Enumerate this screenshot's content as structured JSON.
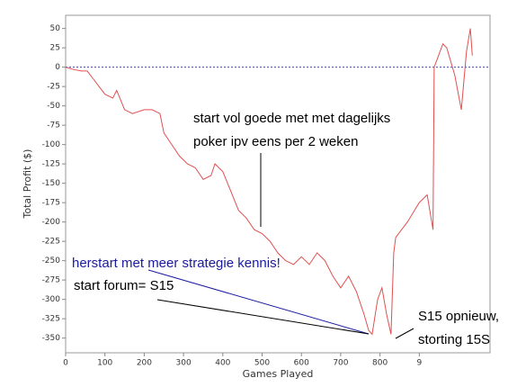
{
  "chart_data": {
    "type": "line",
    "xlabel": "Games Played",
    "ylabel": "Total Profit ($)",
    "x": [
      0,
      20,
      40,
      55,
      70,
      85,
      100,
      120,
      130,
      150,
      170,
      200,
      220,
      240,
      250,
      270,
      290,
      310,
      330,
      350,
      370,
      380,
      400,
      420,
      440,
      460,
      480,
      500,
      520,
      540,
      560,
      580,
      600,
      620,
      640,
      660,
      680,
      700,
      720,
      740,
      760,
      771,
      780,
      794,
      805,
      817,
      828,
      835,
      840,
      870,
      900,
      920,
      935,
      938,
      960,
      970,
      990,
      1007,
      1020,
      1030,
      1035
    ],
    "values": [
      0,
      -3,
      -5,
      -5,
      -15,
      -25,
      -35,
      -40,
      -30,
      -55,
      -60,
      -55,
      -55,
      -60,
      -85,
      -100,
      -115,
      -125,
      -130,
      -145,
      -140,
      -125,
      -135,
      -160,
      -185,
      -195,
      -210,
      -215,
      -225,
      -240,
      -250,
      -255,
      -245,
      -255,
      -240,
      -250,
      -270,
      -285,
      -270,
      -290,
      -320,
      -340,
      -345,
      -300,
      -285,
      -320,
      -345,
      -240,
      -220,
      -200,
      -175,
      -165,
      -210,
      0,
      30,
      25,
      -10,
      -55,
      20,
      50,
      15
    ],
    "color": "#e05050",
    "xlim": [
      0,
      1080
    ],
    "ylim": [
      -369,
      67
    ],
    "xticks": [
      0,
      100,
      200,
      300,
      400,
      500,
      600,
      700,
      800,
      {
        "value": 900,
        "label": "9"
      }
    ],
    "yticks": [
      50,
      25,
      0,
      -25,
      -50,
      -75,
      -100,
      -125,
      -150,
      -175,
      -200,
      -225,
      -250,
      -275,
      -300,
      -325,
      -350
    ],
    "zero_line_color": "#4040c0",
    "annotations": [
      {
        "text": "start vol goede met met dagelijks",
        "color": "#000000"
      },
      {
        "text": "poker ipv eens per 2 weken",
        "color": "#000000"
      },
      {
        "text": "herstart met meer strategie kennis!",
        "color": "#1a1aa0"
      },
      {
        "text": "start forum= S15",
        "color": "#000000"
      },
      {
        "text": "S15 opnieuw,",
        "color": "#000000"
      },
      {
        "text": "storting 15S",
        "color": "#000000"
      }
    ]
  }
}
